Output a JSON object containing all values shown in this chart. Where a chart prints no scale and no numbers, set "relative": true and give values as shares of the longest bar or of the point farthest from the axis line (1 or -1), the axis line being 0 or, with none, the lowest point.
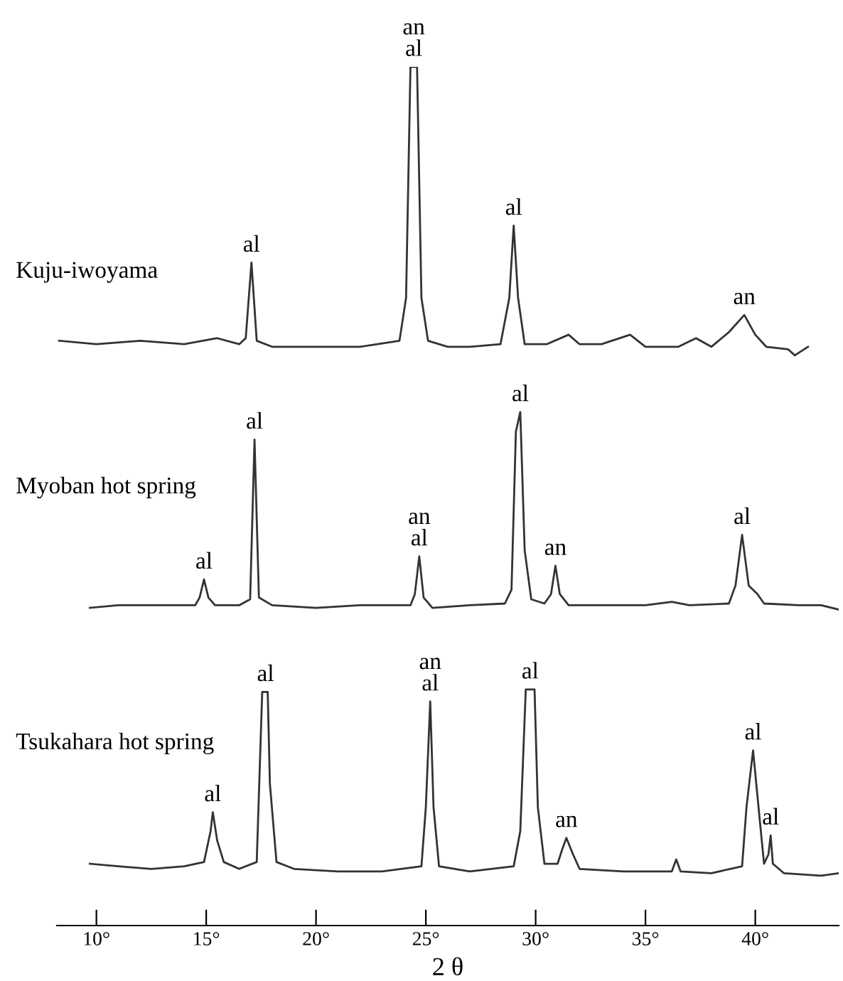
{
  "chart_data": {
    "type": "line",
    "relative": true,
    "xlim": [
      8.2,
      43.8
    ],
    "tick_labels": "x",
    "xlabel": "2 θ",
    "xticks": [
      {
        "value": 10,
        "label": "10°"
      },
      {
        "value": 15,
        "label": "15°"
      },
      {
        "value": 20,
        "label": "20°"
      },
      {
        "value": 25,
        "label": "25°"
      },
      {
        "value": 30,
        "label": "30°"
      },
      {
        "value": 35,
        "label": "35°"
      },
      {
        "value": 40,
        "label": "40°"
      }
    ],
    "series": [
      {
        "name": "Kuju-iwoyama",
        "color": "#333333",
        "x": [
          8.3,
          10,
          12,
          14,
          15.5,
          16.5,
          16.8,
          17.06,
          17.3,
          18,
          20,
          22,
          23.8,
          24.1,
          24.3,
          24.6,
          24.8,
          25.1,
          26,
          27,
          28.4,
          28.8,
          29.0,
          29.2,
          29.5,
          30.5,
          31.5,
          32,
          33,
          34.3,
          35,
          36.5,
          37.3,
          38,
          38.8,
          39.5,
          40,
          40.5,
          41.5,
          41.8,
          42.4
        ],
        "values": [
          0.681,
          0.677,
          0.681,
          0.677,
          0.684,
          0.677,
          0.684,
          0.772,
          0.681,
          0.674,
          0.674,
          0.674,
          0.681,
          0.731,
          1.0,
          1.0,
          0.731,
          0.681,
          0.674,
          0.674,
          0.677,
          0.731,
          0.815,
          0.731,
          0.677,
          0.677,
          0.688,
          0.677,
          0.677,
          0.688,
          0.674,
          0.674,
          0.684,
          0.674,
          0.691,
          0.711,
          0.688,
          0.674,
          0.671,
          0.664,
          0.674
        ]
      },
      {
        "name": "Myoban hot spring",
        "color": "#333333",
        "x": [
          9.7,
          11,
          13,
          14.5,
          14.7,
          14.9,
          15.1,
          15.4,
          16.5,
          17.0,
          17.2,
          17.4,
          18,
          20,
          22,
          24.3,
          24.5,
          24.7,
          24.9,
          25.3,
          27,
          28.6,
          28.9,
          29.1,
          29.3,
          29.5,
          29.8,
          30.4,
          30.7,
          30.9,
          31.1,
          31.5,
          33,
          35,
          36.2,
          37,
          38.8,
          39.1,
          39.4,
          39.7,
          40.1,
          40.4,
          42,
          43,
          43.8
        ],
        "values": [
          0.37,
          0.373,
          0.373,
          0.373,
          0.382,
          0.403,
          0.382,
          0.373,
          0.373,
          0.38,
          0.566,
          0.382,
          0.373,
          0.37,
          0.373,
          0.373,
          0.386,
          0.43,
          0.382,
          0.37,
          0.373,
          0.375,
          0.391,
          0.575,
          0.598,
          0.437,
          0.38,
          0.375,
          0.386,
          0.419,
          0.386,
          0.373,
          0.373,
          0.373,
          0.377,
          0.373,
          0.375,
          0.396,
          0.455,
          0.396,
          0.386,
          0.375,
          0.373,
          0.373,
          0.368
        ]
      },
      {
        "name": "Tsukahara hot spring",
        "color": "#333333",
        "x": [
          9.7,
          11,
          12.5,
          14,
          14.9,
          15.2,
          15.3,
          15.5,
          15.8,
          16.5,
          17.3,
          17.45,
          17.55,
          17.8,
          17.9,
          18.2,
          19,
          21,
          23,
          24.8,
          25.0,
          25.2,
          25.35,
          25.6,
          27,
          29.0,
          29.3,
          29.55,
          29.95,
          30.1,
          30.4,
          31.0,
          31.2,
          31.4,
          31.7,
          32,
          34,
          36.2,
          36.4,
          36.6,
          38,
          39.4,
          39.6,
          39.9,
          40.2,
          40.4,
          40.6,
          40.7,
          40.8,
          41.3,
          43,
          43.8
        ],
        "values": [
          0.072,
          0.069,
          0.066,
          0.069,
          0.074,
          0.11,
          0.132,
          0.099,
          0.074,
          0.066,
          0.074,
          0.193,
          0.272,
          0.272,
          0.165,
          0.074,
          0.066,
          0.063,
          0.063,
          0.069,
          0.138,
          0.261,
          0.138,
          0.069,
          0.063,
          0.069,
          0.11,
          0.275,
          0.275,
          0.138,
          0.072,
          0.072,
          0.088,
          0.102,
          0.083,
          0.066,
          0.063,
          0.063,
          0.077,
          0.063,
          0.061,
          0.069,
          0.138,
          0.204,
          0.124,
          0.072,
          0.083,
          0.105,
          0.072,
          0.061,
          0.058,
          0.061
        ]
      }
    ],
    "annotations": [
      {
        "text": "al",
        "x": 17.06,
        "y": 0.772
      },
      {
        "text": "an\nal",
        "x": 24.45,
        "y": 1.0
      },
      {
        "text": "al",
        "x": 29.0,
        "y": 0.815
      },
      {
        "text": "an",
        "x": 39.5,
        "y": 0.711
      },
      {
        "text": "al",
        "x": 14.9,
        "y": 0.403
      },
      {
        "text": "al",
        "x": 17.2,
        "y": 0.566
      },
      {
        "text": "an\nal",
        "x": 24.7,
        "y": 0.43
      },
      {
        "text": "al",
        "x": 29.3,
        "y": 0.598
      },
      {
        "text": "an",
        "x": 30.9,
        "y": 0.419
      },
      {
        "text": "al",
        "x": 39.4,
        "y": 0.455
      },
      {
        "text": "al",
        "x": 15.3,
        "y": 0.132
      },
      {
        "text": "al",
        "x": 17.7,
        "y": 0.272
      },
      {
        "text": "an\nal",
        "x": 25.2,
        "y": 0.261
      },
      {
        "text": "al",
        "x": 29.75,
        "y": 0.275
      },
      {
        "text": "an",
        "x": 31.4,
        "y": 0.102
      },
      {
        "text": "al",
        "x": 39.9,
        "y": 0.204
      },
      {
        "text": "al",
        "x": 40.7,
        "y": 0.105
      }
    ]
  }
}
